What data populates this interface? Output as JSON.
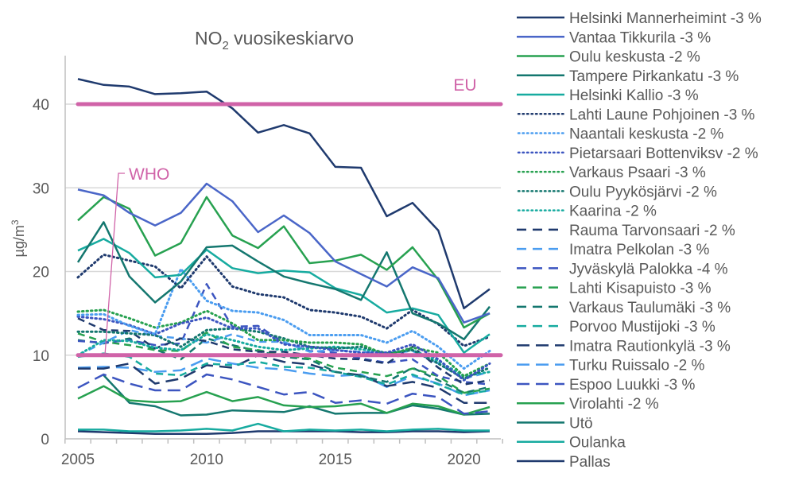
{
  "chart_data": {
    "type": "line",
    "title": "NO",
    "title_sub": "2",
    "title_rest": " vuosikeskiarvo",
    "ylabel": "µg/m",
    "ylabel_sup": "3",
    "xlim": [
      2005,
      2021
    ],
    "ylim": [
      0,
      45
    ],
    "x_ticks": [
      2005,
      2010,
      2015,
      2020
    ],
    "y_ticks": [
      0,
      10,
      20,
      30,
      40
    ],
    "grid": true,
    "legend_placement": "right",
    "x": [
      2005,
      2006,
      2007,
      2008,
      2009,
      2010,
      2011,
      2012,
      2013,
      2014,
      2015,
      2016,
      2017,
      2018,
      2019,
      2020,
      2021
    ],
    "reference_lines": [
      {
        "label": "EU",
        "value": 40,
        "color": "#d063a8"
      },
      {
        "label": "WHO",
        "value": 10,
        "color": "#d063a8"
      }
    ],
    "series": [
      {
        "name": "Helsinki Mannerheimint -3 %",
        "color": "#1f3a6e",
        "style": "solid",
        "values": [
          43.0,
          42.3,
          42.1,
          41.2,
          41.3,
          41.5,
          39.5,
          36.6,
          37.5,
          36.5,
          32.5,
          32.4,
          26.6,
          28.2,
          24.9,
          15.6,
          17.9
        ]
      },
      {
        "name": "Vantaa Tikkurila -3 %",
        "color": "#4a66c8",
        "style": "solid",
        "values": [
          29.8,
          29.1,
          27.0,
          25.5,
          27.0,
          30.5,
          28.4,
          24.7,
          26.7,
          24.6,
          21.2,
          19.7,
          18.2,
          20.5,
          19.2,
          13.9,
          15.0
        ]
      },
      {
        "name": "Oulu keskusta -2 %",
        "color": "#27a150",
        "style": "solid",
        "values": [
          26.1,
          28.9,
          27.5,
          21.9,
          23.4,
          28.9,
          24.3,
          22.8,
          25.4,
          21.0,
          21.3,
          22.0,
          20.2,
          22.9,
          19.0,
          13.3,
          15.0
        ]
      },
      {
        "name": "Tampere Pirkankatu -3 %",
        "color": "#14776f",
        "style": "solid",
        "values": [
          21.1,
          25.9,
          19.4,
          16.3,
          18.8,
          22.9,
          23.1,
          21.2,
          19.4,
          18.6,
          17.9,
          16.6,
          22.3,
          15.0,
          13.8,
          11.9,
          15.8
        ]
      },
      {
        "name": "Helsinki Kallio -3 %",
        "color": "#17aba0",
        "style": "solid",
        "values": [
          22.5,
          23.9,
          22.2,
          19.3,
          19.6,
          22.6,
          20.4,
          19.8,
          20.1,
          19.9,
          18.0,
          17.2,
          15.1,
          15.6,
          14.8,
          10.3,
          12.5
        ]
      },
      {
        "name": "Lahti Laune Pohjoinen -3 %",
        "color": "#1f3a6e",
        "style": "dotted",
        "values": [
          19.3,
          22.0,
          21.3,
          20.6,
          18.0,
          21.8,
          18.2,
          17.3,
          16.9,
          15.4,
          15.1,
          14.6,
          13.2,
          15.4,
          13.7,
          11.1,
          12.2
        ]
      },
      {
        "name": "Naantali keskusta -2 %",
        "color": "#4b9df0",
        "style": "dotted",
        "values": [
          14.8,
          14.9,
          13.5,
          12.5,
          20.3,
          16.5,
          15.3,
          15.1,
          14.2,
          12.4,
          12.4,
          12.4,
          11.5,
          12.9,
          11.0,
          8.4,
          10.5
        ]
      },
      {
        "name": "Pietarsaari Bottenviksv -2 %",
        "color": "#3c55c0",
        "style": "dotted",
        "values": [
          14.6,
          14.3,
          13.6,
          12.5,
          13.8,
          14.5,
          13.2,
          13.2,
          11.3,
          11.0,
          10.6,
          10.3,
          10.3,
          11.3,
          9.5,
          7.0,
          9.0
        ]
      },
      {
        "name": "Varkaus Psaari -3 %",
        "color": "#27a150",
        "style": "dotted",
        "values": [
          15.2,
          15.4,
          14.4,
          13.3,
          13.9,
          15.3,
          13.8,
          11.8,
          11.8,
          11.5,
          11.5,
          11.3,
          10.0,
          10.9,
          10.3,
          7.5,
          9.0
        ]
      },
      {
        "name": "Oulu Pyykösjärvi -2 %",
        "color": "#14776f",
        "style": "dotted",
        "values": [
          12.8,
          12.8,
          12.6,
          12.4,
          11.0,
          13.0,
          13.2,
          12.8,
          12.0,
          11.0,
          10.8,
          11.0,
          10.2,
          10.6,
          9.0,
          7.2,
          8.5
        ]
      },
      {
        "name": "Kaarina -2 %",
        "color": "#17aba0",
        "style": "dotted",
        "values": [
          10.0,
          11.8,
          11.7,
          10.9,
          10.6,
          12.5,
          11.8,
          11.0,
          10.6,
          10.8,
          11.0,
          10.7,
          10.3,
          10.6,
          9.3,
          7.5,
          8.0
        ]
      },
      {
        "name": "Rauma Tarvonsaari -2 %",
        "color": "#1f3a6e",
        "style": "dashed",
        "values": [
          14.4,
          13.0,
          12.9,
          10.8,
          12.0,
          11.7,
          10.7,
          10.4,
          10.4,
          10.0,
          9.6,
          9.5,
          9.0,
          11.0,
          8.5,
          6.5,
          7.0
        ]
      },
      {
        "name": "Imatra Pelkolan -3 %",
        "color": "#4b9df0",
        "style": "dashed",
        "values": [
          10.0,
          11.5,
          13.0,
          12.3,
          12.0,
          11.5,
          12.5,
          11.6,
          11.6,
          10.4,
          10.6,
          10.4,
          10.2,
          10.5,
          9.0,
          7.2,
          8.0
        ]
      },
      {
        "name": "Jyväskylä Palokka -4 %",
        "color": "#3c55c0",
        "style": "dashed",
        "values": [
          11.7,
          11.5,
          11.8,
          11.2,
          11.4,
          18.5,
          13.4,
          13.5,
          11.5,
          10.5,
          10.3,
          9.6,
          9.1,
          9.5,
          7.5,
          6.8,
          6.5
        ]
      },
      {
        "name": "Lahti Kisapuisto -3 %",
        "color": "#27a150",
        "style": "dashed",
        "values": [
          12.6,
          11.6,
          11.2,
          10.6,
          10.5,
          12.7,
          11.0,
          10.6,
          10.0,
          9.6,
          8.5,
          8.0,
          7.5,
          8.4,
          7.5,
          5.5,
          6.0
        ]
      },
      {
        "name": "Varkaus Taulumäki -3 %",
        "color": "#14776f",
        "style": "dashed",
        "values": [
          11.8,
          11.4,
          12.0,
          10.7,
          9.5,
          12.0,
          11.2,
          10.5,
          9.8,
          9.5,
          8.0,
          7.5,
          6.8,
          8.5,
          7.0,
          5.5,
          6.2
        ]
      },
      {
        "name": "Porvoo Mustijoki -3 %",
        "color": "#17aba0",
        "style": "dashed",
        "values": [
          9.8,
          10.2,
          9.8,
          7.8,
          7.6,
          9.0,
          8.8,
          9.2,
          8.6,
          8.5,
          8.0,
          7.4,
          6.5,
          7.7,
          6.5,
          5.3,
          5.8
        ]
      },
      {
        "name": "Imatra Rautionkylä -3 %",
        "color": "#1f3a6e",
        "style": "longdash",
        "values": [
          8.4,
          8.4,
          9.0,
          6.6,
          7.2,
          8.8,
          8.5,
          10.0,
          9.2,
          8.9,
          8.0,
          7.6,
          6.3,
          6.8,
          6.1,
          4.3,
          4.3
        ]
      },
      {
        "name": "Turku Ruissalo -2 %",
        "color": "#4b9df0",
        "style": "longdash",
        "values": [
          8.5,
          8.6,
          8.5,
          8.0,
          8.2,
          9.6,
          9.0,
          8.5,
          8.3,
          7.8,
          7.5,
          7.7,
          6.2,
          7.5,
          6.6,
          5.2,
          5.8
        ]
      },
      {
        "name": "Espoo Luukki -3 %",
        "color": "#3c55c0",
        "style": "longdash",
        "values": [
          6.1,
          7.7,
          6.6,
          5.8,
          5.8,
          7.7,
          7.1,
          6.2,
          5.3,
          5.6,
          4.3,
          4.6,
          4.2,
          5.4,
          5.0,
          3.0,
          3.3
        ]
      },
      {
        "name": "Virolahti -2 %",
        "color": "#27a150",
        "style": "solid",
        "values": [
          4.8,
          6.3,
          4.6,
          4.4,
          4.5,
          5.6,
          4.5,
          5.0,
          4.0,
          3.8,
          3.9,
          4.2,
          3.1,
          4.2,
          3.9,
          2.9,
          3.8
        ]
      },
      {
        "name": "Utö",
        "color": "#14776f",
        "style": "solid",
        "values": [
          null,
          7.6,
          4.3,
          3.9,
          2.8,
          2.9,
          3.4,
          3.3,
          3.2,
          3.9,
          3.0,
          3.1,
          3.1,
          4.0,
          3.6,
          2.9,
          3.0
        ]
      },
      {
        "name": "Oulanka",
        "color": "#17aba0",
        "style": "solid",
        "values": [
          1.1,
          1.1,
          0.9,
          0.9,
          1.0,
          1.2,
          1.0,
          1.8,
          0.9,
          1.1,
          1.0,
          1.1,
          0.9,
          1.1,
          1.2,
          1.0,
          1.0
        ]
      },
      {
        "name": "Pallas",
        "color": "#1f3a6e",
        "style": "solid",
        "values": [
          0.9,
          0.8,
          0.7,
          0.6,
          0.6,
          0.6,
          0.7,
          0.9,
          0.9,
          0.9,
          0.9,
          0.8,
          0.8,
          0.9,
          0.9,
          0.8,
          0.9
        ]
      }
    ]
  }
}
